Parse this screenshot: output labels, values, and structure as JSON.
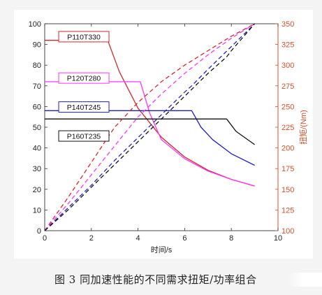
{
  "chart_data": {
    "type": "line",
    "title": "",
    "xlabel": "时间/s",
    "ylabel_left": "",
    "ylabel_right": "扭矩/(Nm)",
    "xlim": [
      0,
      10
    ],
    "ylim_left": [
      0,
      100
    ],
    "ylim_right": [
      100,
      350
    ],
    "x_ticks": [
      "0",
      "2",
      "4",
      "6",
      "8",
      "10"
    ],
    "y_ticks_left": [
      "0",
      "10",
      "20",
      "30",
      "40",
      "50",
      "60",
      "70",
      "80",
      "90",
      "100"
    ],
    "y_ticks_right": [
      "100",
      "125",
      "150",
      "175",
      "200",
      "225",
      "250",
      "275",
      "300",
      "325",
      "350"
    ],
    "grid": false,
    "colors": {
      "P110T330": "#d7262b",
      "P120T280": "#ff33ff",
      "P140T245": "#2020c8",
      "P160T235": "#111111",
      "right_axis": "#d2502a"
    },
    "series": [
      {
        "name": "P110T330",
        "axis": "right",
        "style": "solid",
        "x": [
          0,
          2.7,
          3.2,
          4,
          5,
          6,
          7,
          8,
          9
        ],
        "y": [
          330,
          330,
          292,
          248,
          213,
          189,
          173,
          162,
          154
        ]
      },
      {
        "name": "P120T280",
        "axis": "right",
        "style": "solid",
        "x": [
          0,
          4.1,
          4.5,
          5,
          6,
          7,
          8,
          9
        ],
        "y": [
          280,
          280,
          242,
          210,
          187,
          172,
          162,
          154
        ]
      },
      {
        "name": "P140T245",
        "axis": "right",
        "style": "solid",
        "x": [
          0,
          6.3,
          6.7,
          7.2,
          8,
          9
        ],
        "y": [
          245,
          245,
          225,
          210,
          193,
          179
        ]
      },
      {
        "name": "P160T235",
        "axis": "right",
        "style": "solid",
        "x": [
          0,
          7.8,
          8.2,
          9
        ],
        "y": [
          235,
          235,
          220,
          204
        ]
      },
      {
        "name": "P110T330",
        "axis": "left",
        "style": "dashed",
        "x": [
          0,
          1,
          2,
          2.7,
          3,
          4,
          5,
          6,
          7,
          8,
          9
        ],
        "y": [
          0,
          16,
          33,
          45,
          50,
          62,
          72,
          80,
          87,
          94,
          100
        ]
      },
      {
        "name": "P120T280",
        "axis": "left",
        "style": "dashed",
        "x": [
          0,
          1,
          2,
          3,
          4,
          4.1,
          5,
          6,
          7,
          8,
          9
        ],
        "y": [
          0,
          13,
          27,
          41,
          55,
          56,
          66,
          76,
          85,
          93,
          100
        ]
      },
      {
        "name": "P140T245",
        "axis": "left",
        "style": "dashed",
        "x": [
          0,
          1,
          2,
          3,
          4,
          5,
          6,
          6.3,
          7,
          8,
          9
        ],
        "y": [
          0,
          11,
          22,
          34,
          45,
          56,
          67,
          70,
          78,
          89,
          100
        ]
      },
      {
        "name": "P160T235",
        "axis": "left",
        "style": "dashed",
        "x": [
          0,
          1,
          2,
          3,
          4,
          5,
          6,
          7,
          7.8,
          8,
          9
        ],
        "y": [
          0,
          10,
          21,
          32,
          43,
          54,
          65,
          76,
          84,
          87,
          100
        ]
      }
    ],
    "legend_labels": [
      {
        "name": "P110T330",
        "text": "P110T330",
        "x": 0.6,
        "y": 96.3
      },
      {
        "name": "P120T280",
        "text": "P120T280",
        "x": 0.6,
        "y": 76.3
      },
      {
        "name": "P140T245",
        "text": "P140T245",
        "x": 0.6,
        "y": 62.3
      },
      {
        "name": "P160T235",
        "text": "P160T235",
        "x": 0.6,
        "y": 48.3
      }
    ]
  },
  "caption": "图 3   同加速性能的不同需求扭矩/功率组合"
}
